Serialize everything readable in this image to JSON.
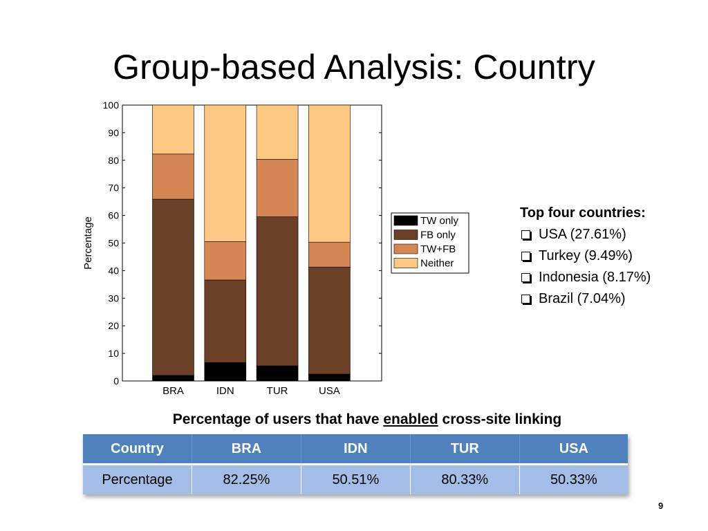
{
  "title": "Group-based Analysis: Country",
  "chart_data": {
    "type": "bar",
    "stacked": true,
    "categories": [
      "BRA",
      "IDN",
      "TUR",
      "USA"
    ],
    "series": [
      {
        "name": "TW only",
        "color": "#000000",
        "values": [
          2,
          6.7,
          5.5,
          2.5
        ]
      },
      {
        "name": "FB only",
        "color": "#6b4027",
        "values": [
          63.9,
          29.9,
          54.0,
          38.8
        ]
      },
      {
        "name": "TW+FB",
        "color": "#d48752",
        "values": [
          16.35,
          13.91,
          20.83,
          9.03
        ]
      },
      {
        "name": "Neither",
        "color": "#fdc883",
        "values": [
          17.75,
          49.49,
          19.67,
          49.67
        ]
      }
    ],
    "ylabel": "Percentage",
    "xlabel": "",
    "ylim": [
      0,
      100
    ],
    "yticks": [
      0,
      10,
      20,
      30,
      40,
      50,
      60,
      70,
      80,
      90,
      100
    ],
    "grid": false,
    "legend_position": "right"
  },
  "side_list": {
    "heading": "Top four countries:",
    "items": [
      "USA (27.61%)",
      "Turkey (9.49%)",
      "Indonesia (8.17%)",
      "Brazil (7.04%)"
    ]
  },
  "caption": {
    "before": "Percentage of users that have ",
    "emphasis": "enabled",
    "after": " cross-site linking"
  },
  "table": {
    "headers": [
      "Country",
      "BRA",
      "IDN",
      "TUR",
      "USA"
    ],
    "row": [
      "Percentage",
      "82.25%",
      "50.51%",
      "80.33%",
      "50.33%"
    ]
  },
  "page_number": "9"
}
